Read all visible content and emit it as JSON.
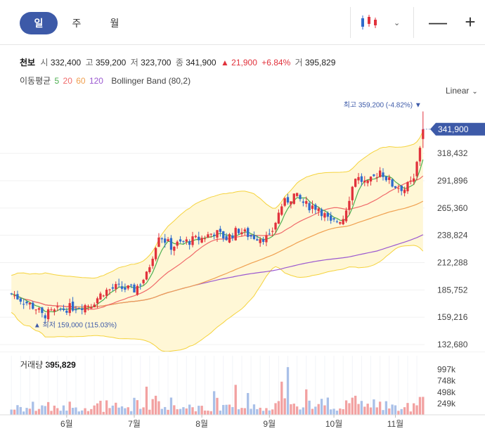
{
  "toolbar": {
    "tabs": [
      {
        "label": "일",
        "active": true
      },
      {
        "label": "주",
        "active": false
      },
      {
        "label": "월",
        "active": false
      }
    ],
    "chart_type_icon": "candlestick-icon",
    "zoom_out_label": "—",
    "zoom_in_label": "+"
  },
  "info": {
    "name": "천보",
    "open_label": "시",
    "open": "332,400",
    "high_label": "고",
    "high": "359,200",
    "low_label": "저",
    "low": "323,700",
    "close_label": "종",
    "close": "341,900",
    "change_arrow": "▲",
    "change": "21,900",
    "change_pct": "+6.84%",
    "volume_label": "거",
    "volume": "395,829"
  },
  "indicators": {
    "ma_label": "이동평균",
    "ma_periods": [
      "5",
      "20",
      "60",
      "120"
    ],
    "bollinger": "Bollinger Band (80,2)"
  },
  "scale": {
    "label": "Linear"
  },
  "colors": {
    "up": "#e1323c",
    "down": "#2f6bcc",
    "ma5": "#4caf50",
    "ma20": "#f06a6a",
    "ma60": "#f0a050",
    "ma120": "#9b59d0",
    "band": "#f5d33c",
    "band_fill": "#fff7d6",
    "last_price_tag": "#3d5aa8",
    "volume_bar": "#f2a1a1"
  },
  "chart_data": {
    "type": "candlestick",
    "y_ticks": [
      "318,432",
      "291,896",
      "265,360",
      "238,824",
      "212,288",
      "185,752",
      "159,216",
      "132,680"
    ],
    "ylim": [
      132680,
      365000
    ],
    "x_ticks": [
      {
        "label": "6월",
        "index": 18
      },
      {
        "label": "7월",
        "index": 40
      },
      {
        "label": "8월",
        "index": 62
      },
      {
        "label": "9월",
        "index": 84
      },
      {
        "label": "10월",
        "index": 105
      },
      {
        "label": "11월",
        "index": 125
      }
    ],
    "last_price": "341,900",
    "high_note": {
      "label": "최고",
      "value": "359,200 (-4.82%)",
      "arrow": "▼",
      "index": 134
    },
    "low_note": {
      "label": "최저",
      "value": "159,000 (115.03%)",
      "arrow": "▲",
      "index": 10
    },
    "series_note": "OHLC candles sampled from chart (KRW); volume in shares",
    "candles": [],
    "volume_title": "거래량",
    "volume_value": "395,829",
    "volume_ticks": [
      "997k",
      "748k",
      "498k",
      "249k"
    ],
    "volume_ylim": [
      0,
      1300000
    ]
  }
}
